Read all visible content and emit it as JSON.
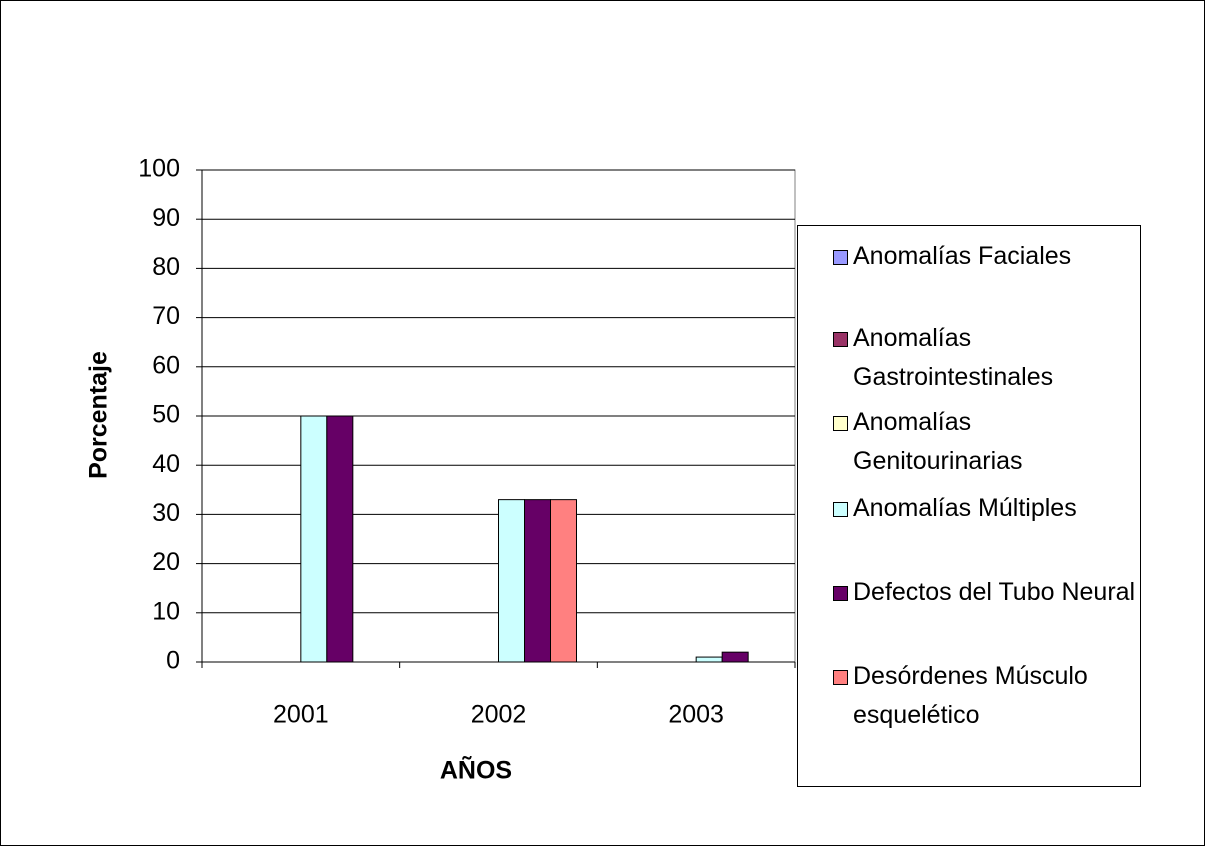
{
  "chart_data": {
    "type": "bar",
    "categories": [
      "2001",
      "2002",
      "2003"
    ],
    "series": [
      {
        "name": "Anomalías Faciales",
        "color": "#9999ff",
        "values": [
          0,
          0,
          0
        ]
      },
      {
        "name": "Anomalías Gastrointestinales",
        "color": "#993366",
        "values": [
          0,
          0,
          0
        ]
      },
      {
        "name": "Anomalías Genitourinarias",
        "color": "#ffffcc",
        "values": [
          0,
          0,
          0
        ]
      },
      {
        "name": "Anomalías Múltiples",
        "color": "#ccffff",
        "values": [
          50,
          33,
          1
        ]
      },
      {
        "name": "Defectos del Tubo Neural",
        "color": "#660066",
        "values": [
          50,
          33,
          2
        ]
      },
      {
        "name": "Desórdenes Músculo esquelético",
        "color": "#ff8080",
        "values": [
          0,
          33,
          0
        ]
      }
    ],
    "ylim": [
      0,
      100
    ],
    "yticks": [
      0,
      10,
      20,
      30,
      40,
      50,
      60,
      70,
      80,
      90,
      100
    ],
    "xlabel": "AÑOS",
    "ylabel": "Porcentaje",
    "grid": true,
    "legend": "right"
  }
}
